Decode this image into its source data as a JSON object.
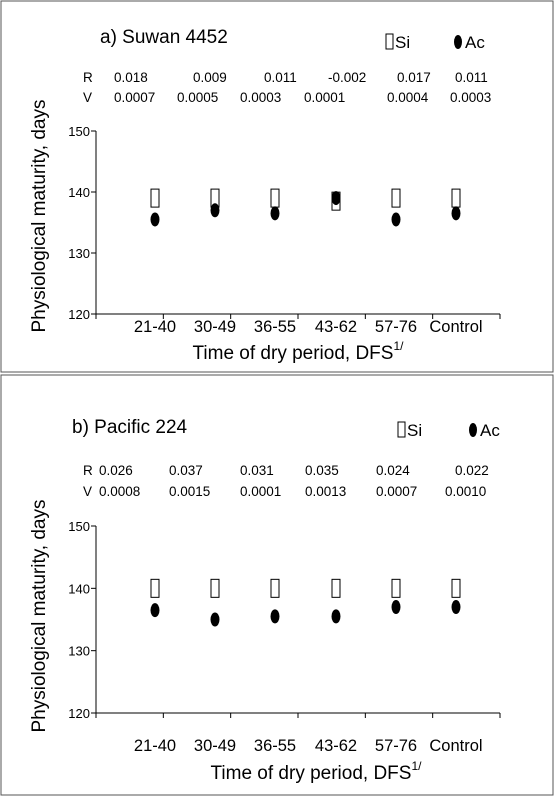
{
  "chart_data": [
    {
      "type": "scatter",
      "title": "a) Suwan 4452",
      "xlabel": "Time of dry period, DFS",
      "xlabel_sup": "1/",
      "ylabel": "Physiological maturity, days",
      "ylim": [
        120,
        150
      ],
      "yticks": [
        "120",
        "130",
        "140",
        "150"
      ],
      "categories": [
        "21-40",
        "30-49",
        "36-55",
        "43-62",
        "57-76",
        "Control"
      ],
      "series": [
        {
          "name": "Si",
          "values": [
            139,
            139,
            139,
            138.5,
            139,
            139
          ]
        },
        {
          "name": "Ac",
          "values": [
            135.5,
            137,
            136.5,
            139,
            135.5,
            136.5
          ]
        }
      ],
      "stats": {
        "r_label": "R",
        "v_label": "V",
        "r": [
          "0.018",
          "0.009",
          "0.011",
          "-0.002",
          "0.017",
          "0.011"
        ],
        "v": [
          "0.0007",
          "0.0005",
          "0.0003",
          "0.0001",
          "0.0004",
          "0.0003"
        ]
      }
    },
    {
      "type": "scatter",
      "title": "b) Pacific 224",
      "xlabel": "Time of dry period, DFS",
      "xlabel_sup": "1/",
      "ylabel": "Physiological maturity, days",
      "ylim": [
        120,
        150
      ],
      "yticks": [
        "120",
        "130",
        "140",
        "150"
      ],
      "categories": [
        "21-40",
        "30-49",
        "36-55",
        "43-62",
        "57-76",
        "Control"
      ],
      "series": [
        {
          "name": "Si",
          "values": [
            140,
            140,
            140,
            140,
            140,
            140
          ]
        },
        {
          "name": "Ac",
          "values": [
            136.5,
            135,
            135.5,
            135.5,
            137,
            137
          ]
        }
      ],
      "stats": {
        "r_label": "R",
        "v_label": "V",
        "r": [
          "0.026",
          "0.037",
          "0.031",
          "0.035",
          "0.024",
          "0.022"
        ],
        "v": [
          "0.0008",
          "0.0015",
          "0.0001",
          "0.0013",
          "0.0007",
          "0.0010"
        ]
      }
    }
  ]
}
